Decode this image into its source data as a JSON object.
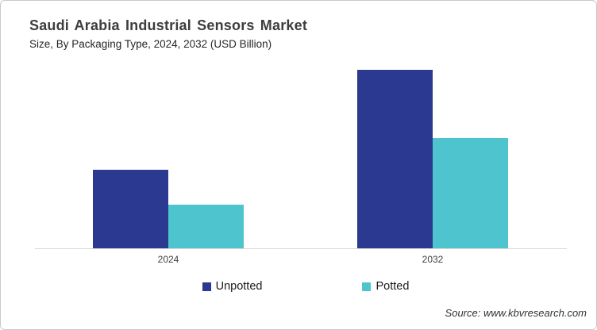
{
  "header": {
    "title": "Saudi Arabia Industrial Sensors Market",
    "subtitle": "Size, By Packaging Type, 2024, 2032 (USD Billion)"
  },
  "chart_data": {
    "type": "bar",
    "title": "Saudi Arabia Industrial Sensors Market Size, By Packaging Type, 2024, 2032 (USD Billion)",
    "categories": [
      "2024",
      "2032"
    ],
    "series": [
      {
        "name": "Unpotted",
        "color": "#2B3990",
        "values": [
          0.99,
          2.25
        ]
      },
      {
        "name": "Potted",
        "color": "#4EC5CE",
        "values": [
          0.55,
          1.39
        ]
      }
    ],
    "xlabel": "",
    "ylabel": "",
    "ylim": [
      0,
      2.5
    ],
    "grid": false,
    "legend_position": "bottom",
    "value_labels": false,
    "axis_line_color": "#D9D9D9"
  },
  "legend": {
    "items": [
      {
        "label": "Unpotted",
        "color": "#2B3990"
      },
      {
        "label": "Potted",
        "color": "#4EC5CE"
      }
    ]
  },
  "footer": {
    "source": "Source: www.kbvresearch.com"
  }
}
